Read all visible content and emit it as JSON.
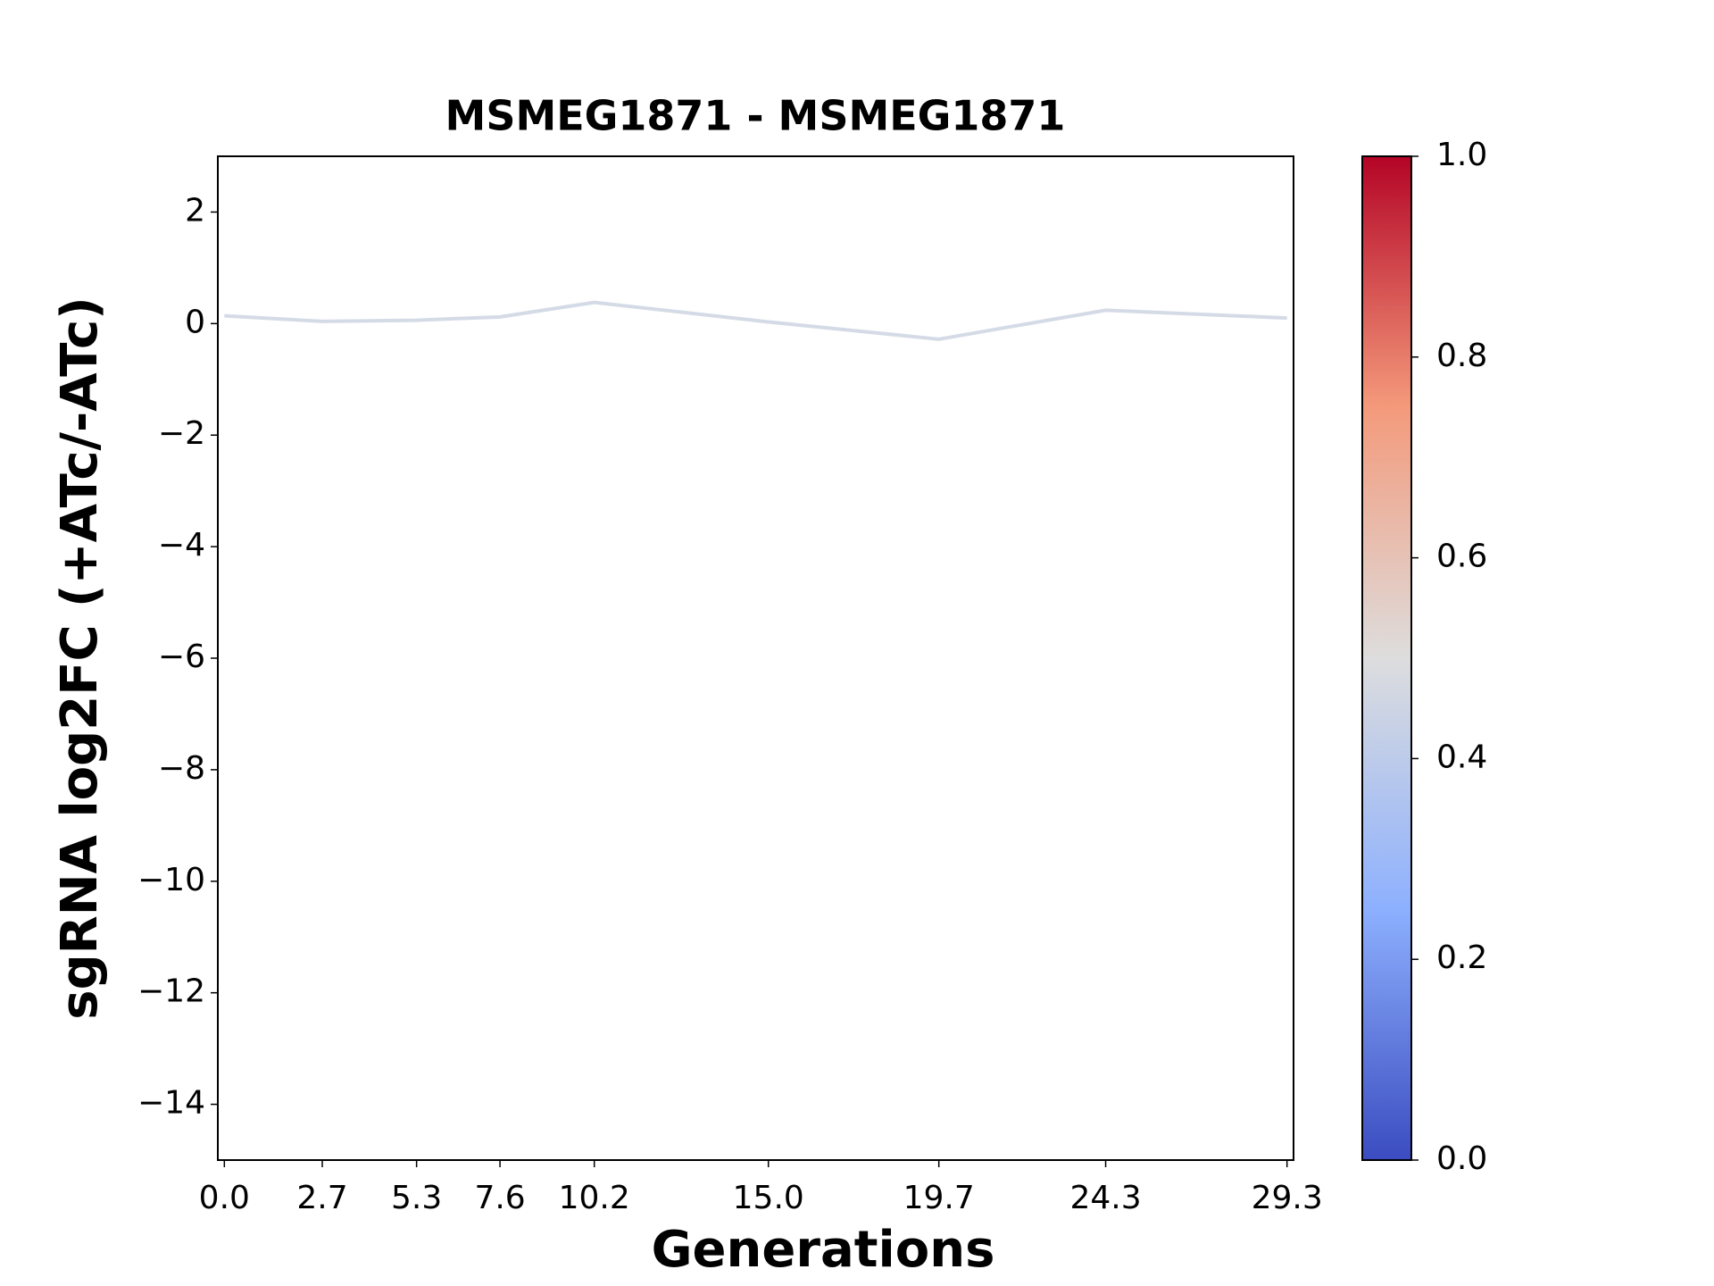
{
  "chart_data": {
    "type": "line",
    "title": "MSMEG1871 - MSMEG1871",
    "xlabel": "Generations",
    "ylabel": "sgRNA log2FC (+ATc/-ATc)",
    "x": [
      0.0,
      2.7,
      5.3,
      7.6,
      10.2,
      15.0,
      19.7,
      24.3,
      29.3
    ],
    "values": [
      0.14,
      0.04,
      0.06,
      0.12,
      0.38,
      0.03,
      -0.28,
      0.24,
      0.1
    ],
    "color": "#d5dbe6",
    "xlim": [
      -0.18,
      29.48
    ],
    "xticks": [
      {
        "value": 0,
        "label": "0.0"
      },
      2.7,
      5.3,
      7.6,
      10.2,
      {
        "value": 15,
        "label": "15.0"
      },
      19.7,
      24.3,
      29.3
    ],
    "ylim": [
      -15,
      3
    ],
    "yticks": [
      {
        "value": 2,
        "label": "2"
      },
      {
        "value": 0,
        "label": "0"
      },
      {
        "value": -2,
        "label": "−2"
      },
      {
        "value": -4,
        "label": "−4"
      },
      {
        "value": -6,
        "label": "−6"
      },
      {
        "value": -8,
        "label": "−8"
      },
      {
        "value": -10,
        "label": "−10"
      },
      {
        "value": -12,
        "label": "−12"
      },
      {
        "value": -14,
        "label": "−14"
      }
    ],
    "colorbar": {
      "lim": [
        0,
        1
      ],
      "ticks": [
        {
          "value": 0,
          "label": "0.0"
        },
        0.2,
        0.4,
        0.6,
        0.8,
        {
          "value": 1,
          "label": "1.0"
        }
      ],
      "colormap": [
        "#3b4cc0",
        "#8db0fe",
        "#dddddd",
        "#f49a7b",
        "#b40426"
      ]
    }
  }
}
